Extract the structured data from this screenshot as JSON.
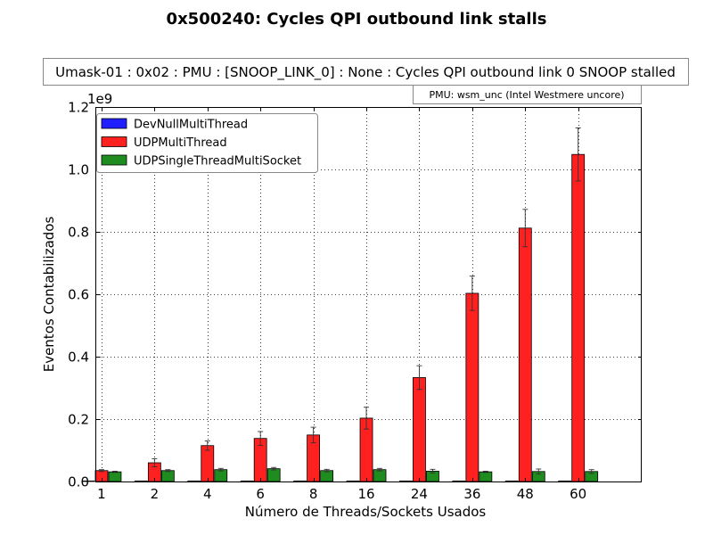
{
  "chart_data": {
    "type": "bar",
    "title": "0x500240: Cycles QPI outbound link stalls",
    "subtitle": "Umask-01 : 0x02 : PMU : [SNOOP_LINK_0] : None : Cycles QPI outbound link 0 SNOOP stalled",
    "pmu_note": "PMU: wsm_unc (Intel Westmere uncore)",
    "xlabel": "Número de Threads/Sockets Usados",
    "ylabel": "Eventos Contabilizados",
    "y_scale_label": "1e9",
    "ylim": [
      0,
      1.2
    ],
    "yticks": [
      "0.0",
      "0.2",
      "0.4",
      "0.6",
      "0.8",
      "1.0",
      "1.2"
    ],
    "categories": [
      "1",
      "2",
      "4",
      "6",
      "8",
      "16",
      "24",
      "36",
      "48",
      "60"
    ],
    "legend_position": "upper-left",
    "grid": true,
    "series": [
      {
        "name": "DevNullMultiThread",
        "color": "#1f1fff",
        "values": [
          0,
          0,
          0,
          0,
          0,
          0,
          0,
          0,
          0,
          0
        ],
        "errors": [
          0,
          0,
          0,
          0,
          0,
          0,
          0,
          0,
          0,
          0
        ]
      },
      {
        "name": "UDPMultiThread",
        "color": "#ff2020",
        "values": [
          0.035,
          0.06,
          0.115,
          0.138,
          0.149,
          0.203,
          0.333,
          0.603,
          0.812,
          1.048
        ],
        "errors": [
          0.003,
          0.013,
          0.015,
          0.022,
          0.025,
          0.035,
          0.038,
          0.055,
          0.06,
          0.085
        ]
      },
      {
        "name": "UDPSingleThreadMultiSocket",
        "color": "#1e8c1e",
        "values": [
          0.031,
          0.035,
          0.038,
          0.041,
          0.035,
          0.038,
          0.033,
          0.031,
          0.032,
          0.032
        ],
        "errors": [
          0.002,
          0.003,
          0.004,
          0.004,
          0.004,
          0.004,
          0.006,
          0.002,
          0.008,
          0.006
        ]
      }
    ]
  }
}
